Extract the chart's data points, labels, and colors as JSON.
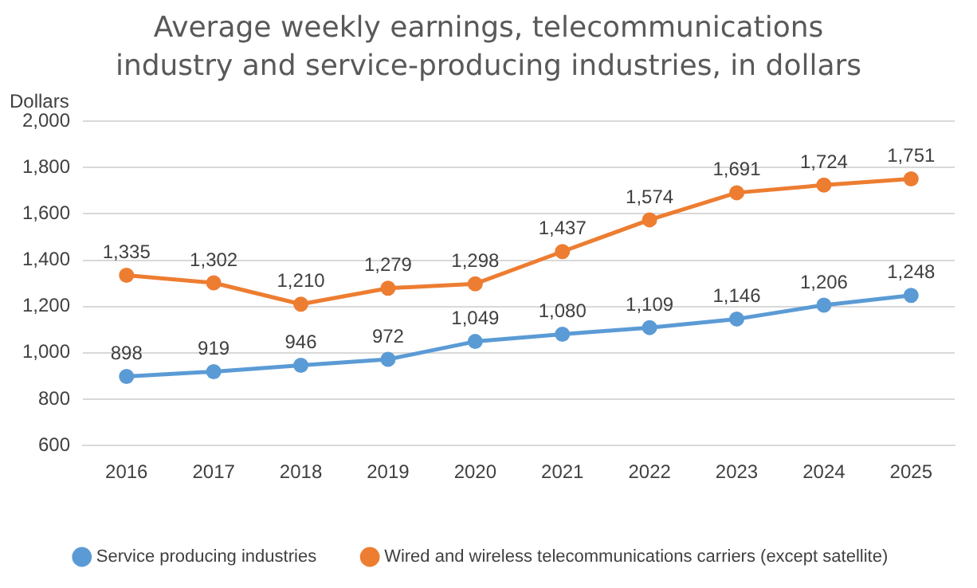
{
  "chart_data": {
    "type": "line",
    "title": "Average weekly earnings, telecommunications industry and service-producing industries, in dollars",
    "ylabel": "Dollars",
    "categories": [
      "2016",
      "2017",
      "2018",
      "2019",
      "2020",
      "2021",
      "2022",
      "2023",
      "2024",
      "2025"
    ],
    "series": [
      {
        "name": "Service producing industries",
        "color": "#5b9bd5",
        "values": [
          898,
          919,
          946,
          972,
          1049,
          1080,
          1109,
          1146,
          1206,
          1248
        ],
        "value_labels": [
          "898",
          "919",
          "946",
          "972",
          "1,049",
          "1,080",
          "1,109",
          "1,146",
          "1,206",
          "1,248"
        ]
      },
      {
        "name": "Wired and wireless telecommunications carriers (except satellite)",
        "color": "#ed7d31",
        "values": [
          1335,
          1302,
          1210,
          1279,
          1298,
          1437,
          1574,
          1691,
          1724,
          1751
        ],
        "value_labels": [
          "1,335",
          "1,302",
          "1,210",
          "1,279",
          "1,298",
          "1,437",
          "1,574",
          "1,691",
          "1,724",
          "1,751"
        ]
      }
    ],
    "ylim": [
      600,
      2000
    ],
    "yticks": [
      {
        "value": 600,
        "label": "600"
      },
      {
        "value": 800,
        "label": "800"
      },
      {
        "value": 1000,
        "label": "1,000"
      },
      {
        "value": 1200,
        "label": "1,200"
      },
      {
        "value": 1400,
        "label": "1,400"
      },
      {
        "value": 1600,
        "label": "1,600"
      },
      {
        "value": 1800,
        "label": "1,800"
      },
      {
        "value": 2000,
        "label": "2,000"
      }
    ],
    "grid": "y",
    "legend": "bottom",
    "marker": "circle",
    "line_style": "solid"
  }
}
